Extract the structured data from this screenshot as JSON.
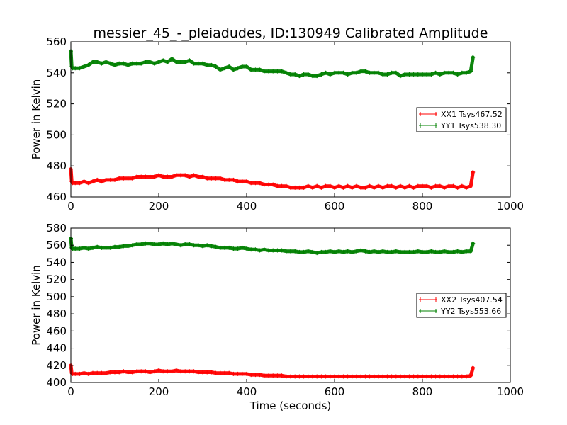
{
  "title": "messier_45_-_pleiadudes, ID:130949 Calibrated Amplitude",
  "xlabel": "Time (seconds)",
  "colors": {
    "xx": "#ff0000",
    "yy": "#008000",
    "frame": "#000000",
    "background": "#ffffff"
  },
  "chart_data": [
    {
      "type": "line",
      "ylabel": "Power in Kelvin",
      "xlim": [
        0,
        1000
      ],
      "ylim": [
        460,
        560
      ],
      "xticks": [
        "0",
        "200",
        "400",
        "600",
        "800",
        "1000"
      ],
      "yticks": [
        "460",
        "480",
        "500",
        "520",
        "540",
        "560"
      ],
      "legend_position": "center-right",
      "grid": false,
      "series": [
        {
          "name": "XX1 Tsys467.52",
          "color": "#ff0000",
          "x": [
            0,
            2,
            4,
            10,
            20,
            30,
            40,
            50,
            60,
            70,
            80,
            90,
            100,
            110,
            120,
            130,
            140,
            150,
            160,
            170,
            180,
            190,
            200,
            210,
            220,
            230,
            240,
            250,
            260,
            270,
            280,
            290,
            300,
            310,
            320,
            330,
            340,
            350,
            360,
            370,
            380,
            390,
            400,
            410,
            420,
            430,
            440,
            450,
            460,
            470,
            480,
            490,
            500,
            510,
            520,
            530,
            540,
            550,
            560,
            570,
            580,
            590,
            600,
            610,
            620,
            630,
            640,
            650,
            660,
            670,
            680,
            690,
            700,
            710,
            720,
            730,
            740,
            750,
            760,
            770,
            780,
            790,
            800,
            810,
            820,
            830,
            840,
            850,
            860,
            870,
            880,
            890,
            900,
            910,
            915
          ],
          "y": [
            478,
            470,
            469,
            469,
            469,
            470,
            469,
            470,
            471,
            470,
            471,
            471,
            471,
            472,
            472,
            472,
            472,
            473,
            473,
            473,
            473,
            473,
            474,
            473,
            473,
            473,
            474,
            474,
            474,
            473,
            474,
            473,
            473,
            472,
            472,
            472,
            472,
            471,
            471,
            471,
            470,
            470,
            470,
            469,
            469,
            469,
            468,
            468,
            468,
            467,
            467,
            467,
            466,
            466,
            466,
            466,
            467,
            466,
            467,
            466,
            467,
            467,
            466,
            467,
            466,
            467,
            466,
            467,
            466,
            466,
            467,
            466,
            467,
            466,
            467,
            467,
            466,
            467,
            466,
            467,
            466,
            467,
            467,
            467,
            466,
            467,
            467,
            466,
            467,
            467,
            466,
            467,
            466,
            467,
            476
          ]
        },
        {
          "name": "YY1 Tsys538.30",
          "color": "#008000",
          "x": [
            0,
            2,
            4,
            10,
            20,
            30,
            40,
            50,
            60,
            70,
            80,
            90,
            100,
            110,
            120,
            130,
            140,
            150,
            160,
            170,
            180,
            190,
            200,
            210,
            220,
            230,
            240,
            250,
            260,
            270,
            280,
            290,
            300,
            310,
            320,
            330,
            340,
            350,
            360,
            370,
            380,
            390,
            400,
            410,
            420,
            430,
            440,
            450,
            460,
            470,
            480,
            490,
            500,
            510,
            520,
            530,
            540,
            550,
            560,
            570,
            580,
            590,
            600,
            610,
            620,
            630,
            640,
            650,
            660,
            670,
            680,
            690,
            700,
            710,
            720,
            730,
            740,
            750,
            760,
            770,
            780,
            790,
            800,
            810,
            820,
            830,
            840,
            850,
            860,
            870,
            880,
            890,
            900,
            910,
            915
          ],
          "y": [
            554,
            544,
            543,
            543,
            543,
            544,
            545,
            547,
            547,
            546,
            547,
            546,
            545,
            546,
            546,
            545,
            546,
            546,
            546,
            547,
            547,
            546,
            547,
            548,
            547,
            549,
            547,
            547,
            547,
            548,
            546,
            546,
            546,
            545,
            545,
            544,
            542,
            543,
            544,
            542,
            543,
            544,
            544,
            542,
            542,
            542,
            541,
            541,
            541,
            541,
            541,
            540,
            539,
            539,
            538,
            539,
            539,
            538,
            538,
            539,
            540,
            539,
            540,
            540,
            540,
            539,
            540,
            540,
            541,
            541,
            540,
            540,
            540,
            539,
            539,
            540,
            540,
            538,
            539,
            539,
            539,
            539,
            539,
            539,
            539,
            540,
            539,
            540,
            540,
            540,
            539,
            540,
            540,
            541,
            550
          ]
        }
      ]
    },
    {
      "type": "line",
      "ylabel": "Power in Kelvin",
      "xlabel": "Time (seconds)",
      "xlim": [
        0,
        1000
      ],
      "ylim": [
        400,
        580
      ],
      "xticks": [
        "0",
        "200",
        "400",
        "600",
        "800",
        "1000"
      ],
      "yticks": [
        "400",
        "420",
        "440",
        "460",
        "480",
        "500",
        "520",
        "540",
        "560",
        "580"
      ],
      "legend_position": "center-right",
      "grid": false,
      "series": [
        {
          "name": "XX2 Tsys407.54",
          "color": "#ff0000",
          "x": [
            0,
            2,
            4,
            10,
            20,
            30,
            40,
            50,
            60,
            70,
            80,
            90,
            100,
            110,
            120,
            130,
            140,
            150,
            160,
            170,
            180,
            190,
            200,
            210,
            220,
            230,
            240,
            250,
            260,
            270,
            280,
            290,
            300,
            310,
            320,
            330,
            340,
            350,
            360,
            370,
            380,
            390,
            400,
            410,
            420,
            430,
            440,
            450,
            460,
            470,
            480,
            490,
            500,
            510,
            520,
            530,
            540,
            550,
            560,
            570,
            580,
            590,
            600,
            610,
            620,
            630,
            640,
            650,
            660,
            670,
            680,
            690,
            700,
            710,
            720,
            730,
            740,
            750,
            760,
            770,
            780,
            790,
            800,
            810,
            820,
            830,
            840,
            850,
            860,
            870,
            880,
            890,
            900,
            910,
            915
          ],
          "y": [
            420,
            411,
            410,
            410,
            410,
            411,
            410,
            411,
            411,
            411,
            411,
            412,
            412,
            412,
            413,
            412,
            412,
            413,
            413,
            413,
            412,
            413,
            414,
            413,
            413,
            413,
            414,
            413,
            413,
            413,
            413,
            412,
            412,
            412,
            412,
            411,
            411,
            411,
            411,
            410,
            410,
            410,
            410,
            409,
            409,
            409,
            408,
            408,
            408,
            408,
            408,
            407,
            407,
            407,
            407,
            407,
            407,
            407,
            407,
            407,
            407,
            407,
            407,
            407,
            407,
            407,
            407,
            407,
            407,
            407,
            407,
            407,
            407,
            407,
            407,
            407,
            407,
            407,
            407,
            407,
            407,
            407,
            407,
            407,
            407,
            407,
            407,
            407,
            407,
            407,
            407,
            407,
            407,
            408,
            417
          ]
        },
        {
          "name": "YY2 Tsys553.66",
          "color": "#008000",
          "x": [
            0,
            2,
            4,
            10,
            20,
            30,
            40,
            50,
            60,
            70,
            80,
            90,
            100,
            110,
            120,
            130,
            140,
            150,
            160,
            170,
            180,
            190,
            200,
            210,
            220,
            230,
            240,
            250,
            260,
            270,
            280,
            290,
            300,
            310,
            320,
            330,
            340,
            350,
            360,
            370,
            380,
            390,
            400,
            410,
            420,
            430,
            440,
            450,
            460,
            470,
            480,
            490,
            500,
            510,
            520,
            530,
            540,
            550,
            560,
            570,
            580,
            590,
            600,
            610,
            620,
            630,
            640,
            650,
            660,
            670,
            680,
            690,
            700,
            710,
            720,
            730,
            740,
            750,
            760,
            770,
            780,
            790,
            800,
            810,
            820,
            830,
            840,
            850,
            860,
            870,
            880,
            890,
            900,
            910,
            915
          ],
          "y": [
            568,
            557,
            556,
            556,
            556,
            557,
            556,
            557,
            558,
            557,
            557,
            557,
            558,
            558,
            559,
            559,
            560,
            561,
            561,
            562,
            562,
            561,
            561,
            562,
            561,
            562,
            561,
            560,
            561,
            561,
            560,
            560,
            559,
            560,
            559,
            558,
            557,
            557,
            557,
            556,
            556,
            557,
            556,
            555,
            555,
            554,
            555,
            554,
            554,
            554,
            554,
            553,
            553,
            553,
            552,
            552,
            553,
            552,
            551,
            552,
            552,
            553,
            552,
            553,
            552,
            553,
            552,
            553,
            554,
            553,
            552,
            553,
            552,
            553,
            552,
            552,
            553,
            552,
            552,
            552,
            552,
            553,
            552,
            552,
            553,
            552,
            552,
            553,
            552,
            552,
            553,
            552,
            553,
            553,
            562
          ]
        }
      ]
    }
  ]
}
